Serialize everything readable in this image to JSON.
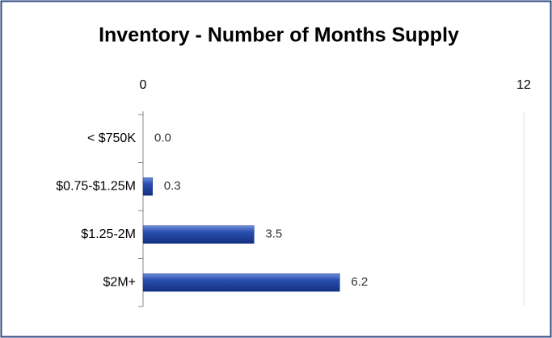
{
  "chart_data": {
    "type": "bar",
    "orientation": "horizontal",
    "title": "Inventory - Number of Months Supply",
    "categories": [
      "< $750K",
      "$0.75-$1.25M",
      "$1.25-2M",
      "$2M+"
    ],
    "values": [
      0,
      0.3,
      3.5,
      6.2
    ],
    "value_labels": [
      "0.0",
      "0.3",
      "3.5",
      "6.2"
    ],
    "color": "#1f3f9a",
    "xlim": [
      0,
      12
    ],
    "xticks": [
      0,
      12
    ]
  }
}
